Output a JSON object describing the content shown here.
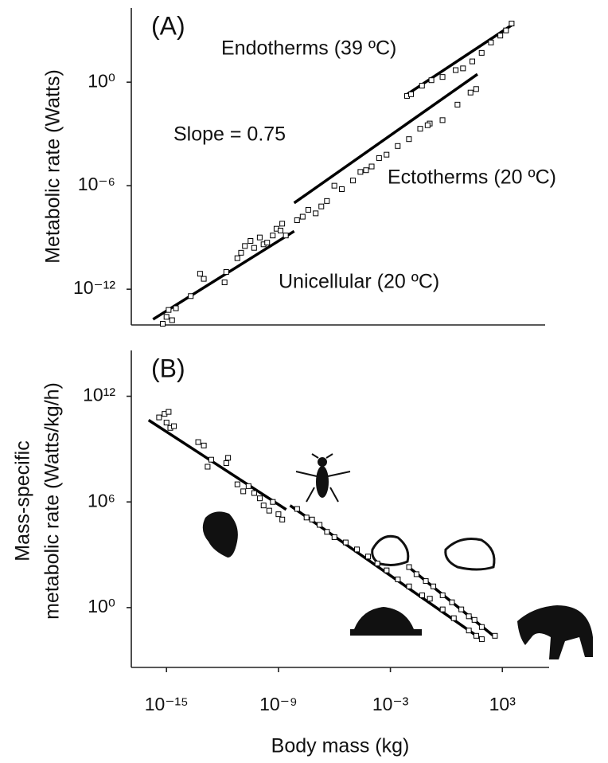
{
  "chart_data": [
    {
      "type": "scatter",
      "panel_label": "(A)",
      "y_label": "Metabolic rate (Watts)",
      "log_x": true,
      "log_y": true,
      "marker": "square",
      "color": "#000000",
      "xlim": [
        1.3e-17,
        200000.0
      ],
      "ylim": [
        8.5e-15,
        20000.0
      ],
      "yticks": [
        {
          "value": 1,
          "label": "10⁰"
        },
        {
          "value": 1e-06,
          "label": "10⁻⁶"
        },
        {
          "value": 1e-12,
          "label": "10⁻¹²"
        }
      ],
      "annotations": [
        "Endotherms (39 ºC)",
        "Slope = 0.75",
        "Ectotherms (20 ºC)",
        "Unicellular (20 ºC)"
      ],
      "series": [
        {
          "x": [
            6.3e-16,
            1e-15,
            1.3e-15,
            2e-15,
            3.2e-15,
            2e-14,
            6.3e-14,
            1e-13,
            1.3e-12,
            1.6e-12,
            6.3e-12,
            1e-11,
            1.6e-11,
            3.2e-11,
            5e-11,
            1e-10,
            1.6e-10,
            2.5e-10,
            5e-10,
            7.9e-10,
            1.3e-09,
            1.6e-09,
            2.5e-09
          ],
          "values": [
            1e-14,
            2.5e-14,
            6.3e-14,
            1.6e-14,
            7.9e-14,
            4e-13,
            7.9e-12,
            4e-12,
            2.5e-12,
            1e-11,
            6.3e-11,
            1.3e-10,
            3.2e-10,
            6.3e-10,
            2.5e-10,
            1e-09,
            4e-10,
            5e-10,
            1.3e-09,
            3.2e-09,
            2.5e-09,
            6.3e-09,
            1.3e-09
          ]
        },
        {
          "x": [
            1e-08,
            2e-08,
            4e-08,
            1e-07,
            2e-07,
            4e-07,
            1e-06,
            2.5e-06,
            1e-05,
            2.5e-05,
            0.0001,
            0.00025,
            0.00063,
            0.0025,
            0.01,
            0.04,
            0.13,
            0.63,
            4,
            20,
            40,
            0.1,
            5e-05
          ],
          "values": [
            1e-08,
            1.6e-08,
            4e-08,
            2.5e-08,
            6.3e-08,
            1.3e-07,
            1e-06,
            6.3e-07,
            2e-06,
            6.3e-06,
            1.3e-05,
            4e-05,
            6.3e-05,
            0.0002,
            0.0005,
            0.002,
            0.004,
            0.0063,
            0.05,
            0.25,
            0.4,
            0.0032,
            7.9e-06
          ]
        },
        {
          "x": [
            0.0079,
            0.013,
            0.05,
            0.16,
            0.63,
            3.2,
            7.9,
            25,
            79,
            250,
            790,
            1600,
            3200
          ],
          "values": [
            0.16,
            0.2,
            0.63,
            1.3,
            2,
            5,
            6.3,
            16,
            50,
            200,
            500,
            1000,
            2500
          ]
        }
      ],
      "lines": [
        {
          "x": [
            1.9e-16,
            7e-09
          ],
          "values": [
            1.8e-14,
            2.3e-09
          ]
        },
        {
          "x": [
            7e-09,
            47
          ],
          "values": [
            1e-07,
            2.9
          ]
        },
        {
          "x": [
            0.0081,
            3900
          ],
          "values": [
            0.2,
            2300
          ]
        }
      ]
    },
    {
      "type": "scatter",
      "panel_label": "(B)",
      "y_label": [
        "Mass-specific",
        "metabolic rate (Watts/kg/h)"
      ],
      "x_label": "Body mass (kg)",
      "log_x": true,
      "log_y": true,
      "marker": "square",
      "color": "#000000",
      "xlim": [
        1.3e-17,
        320000.0
      ],
      "ylim": [
        0.0004,
        400000000000000.0
      ],
      "xticks": [
        {
          "value": 1e-15,
          "label": "10⁻¹⁵"
        },
        {
          "value": 1e-09,
          "label": "10⁻⁹"
        },
        {
          "value": 0.001,
          "label": "10⁻³"
        },
        {
          "value": 1000,
          "label": "10³"
        }
      ],
      "yticks": [
        {
          "value": 1000000000000.0,
          "label": "10¹²"
        },
        {
          "value": 1000000.0,
          "label": "10⁶"
        },
        {
          "value": 1,
          "label": "10⁰"
        }
      ],
      "series": [
        {
          "x": [
            4e-16,
            7.9e-16,
            1.3e-15,
            1e-15,
            1.6e-15,
            2.5e-15,
            5e-14,
            1e-13,
            2.5e-13,
            1.6e-13,
            2e-12,
            1.6e-12,
            6.3e-12,
            1.3e-11,
            2.5e-11,
            5e-11,
            1e-10,
            1.6e-10,
            3.2e-10,
            5e-10,
            1e-09,
            1.6e-09
          ],
          "values": [
            63000000000.0,
            100000000000.0,
            130000000000.0,
            32000000000.0,
            16000000000.0,
            20000000000.0,
            2500000000.0,
            1600000000.0,
            250000000.0,
            100000000.0,
            320000000.0,
            160000000.0,
            10000000.0,
            4000000.0,
            7900000.0,
            3200000.0,
            1600000.0,
            630000.0,
            320000.0,
            1000000.0,
            200000.0,
            100000.0
          ]
        },
        {
          "x": [
            1e-08,
            3.2e-08,
            6.3e-08,
            1.6e-07,
            4e-07,
            1e-06,
            4e-06,
            1.6e-05,
            6.3e-05,
            0.0002,
            0.00063,
            0.0025,
            0.01,
            0.05,
            0.13,
            0.63,
            2.5,
            16,
            40,
            79
          ],
          "values": [
            400000.0,
            130000.0,
            100000.0,
            50000.0,
            20000.0,
            10000.0,
            5000.0,
            2000.0,
            790,
            320,
            130,
            40,
            16,
            5,
            3.2,
            0.79,
            0.25,
            0.05,
            0.025,
            0.016
          ]
        },
        {
          "x": [
            0.01,
            0.025,
            0.079,
            0.2,
            0.63,
            2,
            6.3,
            16,
            32,
            79,
            400
          ],
          "values": [
            200,
            79,
            32,
            16,
            5,
            2,
            0.79,
            0.32,
            0.2,
            0.079,
            0.025
          ]
        }
      ],
      "lines": [
        {
          "x": [
            1.1e-16,
            2.6e-09
          ],
          "values": [
            44000000000.0,
            370000.0
          ]
        },
        {
          "x": [
            4.2e-09,
            76
          ],
          "values": [
            630000.0,
            0.016
          ]
        },
        {
          "x": [
            0.0089,
            410
          ],
          "values": [
            210,
            0.021
          ]
        }
      ]
    }
  ]
}
